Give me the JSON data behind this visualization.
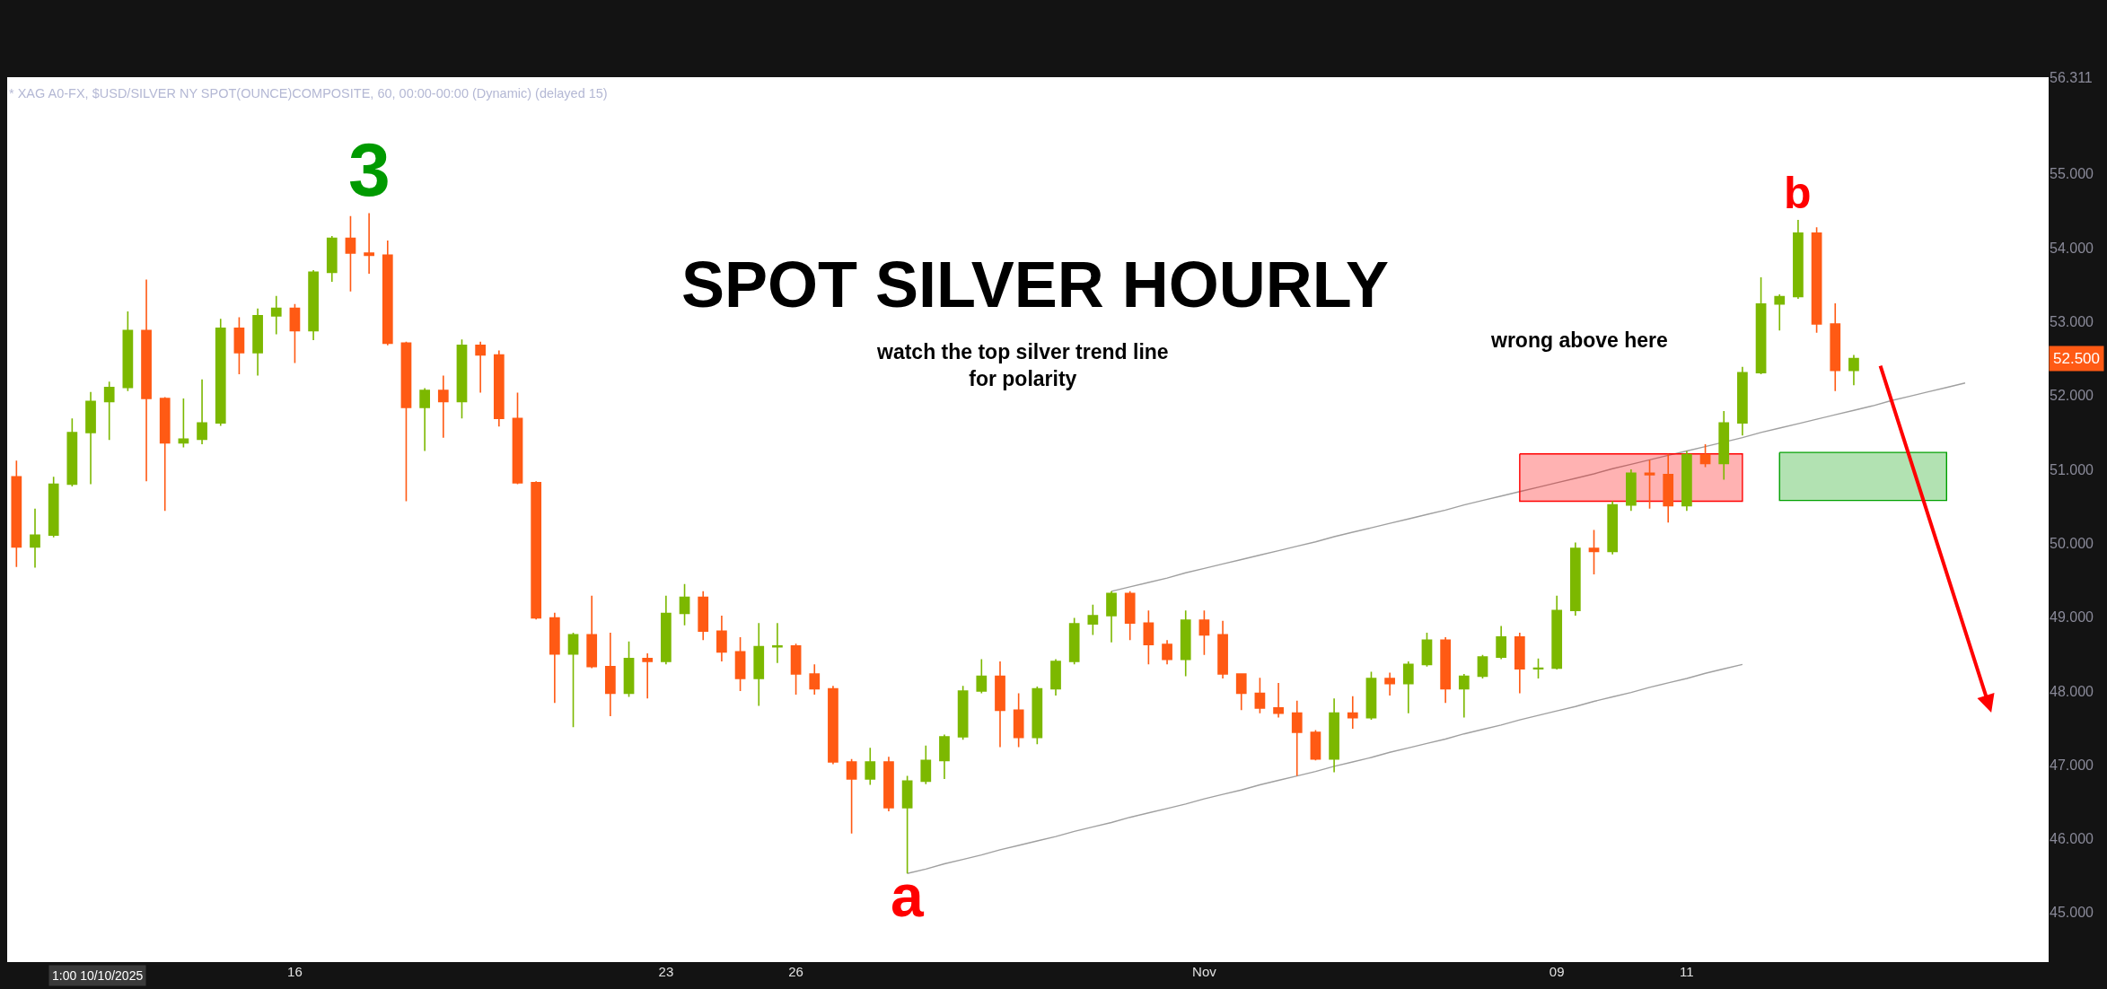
{
  "chart_data": {
    "type": "candlestick",
    "title": "SPOT SILVER HOURLY",
    "subtitle": "* XAG A0-FX, $USD/SILVER NY SPOT(OUNCE)COMPOSITE, 60, 00:00-00:00 (Dynamic) (delayed 15)",
    "categories": [
      null,
      null,
      null,
      null,
      null,
      null,
      null,
      null,
      null,
      null,
      null,
      null,
      null,
      null,
      null,
      "16",
      null,
      null,
      null,
      null,
      null,
      null,
      null,
      null,
      null,
      null,
      null,
      null,
      null,
      null,
      null,
      null,
      null,
      null,
      null,
      "23",
      null,
      null,
      null,
      null,
      null,
      null,
      "26",
      null,
      null,
      null,
      null,
      null,
      null,
      null,
      null,
      null,
      null,
      null,
      null,
      null,
      null,
      null,
      null,
      null,
      null,
      null,
      null,
      null,
      "Nov",
      null,
      null,
      null,
      null,
      null,
      null,
      null,
      null,
      null,
      null,
      null,
      null,
      null,
      null,
      null,
      null,
      null,
      null,
      "09",
      null,
      null,
      null,
      null,
      null,
      null,
      "11",
      null,
      null,
      null,
      null,
      null,
      null,
      null,
      null,
      null,
      null,
      null,
      null,
      null,
      null,
      null,
      null,
      null,
      null,
      null
    ],
    "ohlc": [
      [
        50.9,
        51.12,
        49.68,
        49.95
      ],
      [
        49.95,
        50.47,
        49.67,
        50.11
      ],
      [
        50.11,
        50.9,
        50.08,
        50.8
      ],
      [
        50.8,
        51.69,
        50.77,
        51.5
      ],
      [
        51.5,
        52.05,
        50.8,
        51.92
      ],
      [
        51.92,
        52.19,
        51.4,
        52.11
      ],
      [
        52.11,
        53.14,
        52.06,
        52.88
      ],
      [
        52.88,
        53.57,
        50.84,
        51.96
      ],
      [
        51.96,
        51.98,
        50.44,
        51.36
      ],
      [
        51.36,
        51.96,
        51.3,
        51.41
      ],
      [
        51.41,
        52.22,
        51.34,
        51.63
      ],
      [
        51.63,
        53.04,
        51.59,
        52.91
      ],
      [
        52.91,
        53.06,
        52.29,
        52.58
      ],
      [
        52.58,
        53.18,
        52.27,
        53.08
      ],
      [
        53.08,
        53.35,
        52.83,
        53.18
      ],
      [
        53.18,
        53.24,
        52.44,
        52.88
      ],
      [
        52.88,
        53.7,
        52.75,
        53.67
      ],
      [
        53.67,
        54.16,
        53.54,
        54.13
      ],
      [
        54.13,
        54.43,
        53.41,
        53.93
      ],
      [
        53.93,
        54.47,
        53.65,
        53.9
      ],
      [
        53.9,
        54.1,
        52.68,
        52.71
      ],
      [
        52.71,
        52.73,
        50.57,
        51.84
      ],
      [
        51.84,
        52.1,
        51.25,
        52.07
      ],
      [
        52.07,
        52.27,
        51.43,
        51.92
      ],
      [
        51.92,
        52.76,
        51.69,
        52.68
      ],
      [
        52.68,
        52.73,
        52.04,
        52.55
      ],
      [
        52.55,
        52.61,
        51.58,
        51.69
      ],
      [
        51.69,
        52.04,
        50.8,
        50.82
      ],
      [
        50.82,
        50.84,
        48.97,
        48.99
      ],
      [
        48.99,
        49.06,
        47.84,
        48.5
      ],
      [
        48.5,
        48.79,
        47.51,
        48.76
      ],
      [
        48.76,
        49.29,
        48.31,
        48.33
      ],
      [
        48.33,
        48.79,
        47.66,
        47.97
      ],
      [
        47.97,
        48.67,
        47.92,
        48.44
      ],
      [
        48.44,
        48.51,
        47.9,
        48.4
      ],
      [
        48.4,
        49.29,
        48.36,
        49.05
      ],
      [
        49.05,
        49.45,
        48.89,
        49.27
      ],
      [
        49.27,
        49.35,
        48.69,
        48.81
      ],
      [
        48.81,
        49.02,
        48.4,
        48.53
      ],
      [
        48.53,
        48.73,
        48.0,
        48.17
      ],
      [
        48.17,
        48.92,
        47.8,
        48.6
      ],
      [
        48.6,
        48.92,
        48.38,
        48.61
      ],
      [
        48.61,
        48.64,
        47.95,
        48.23
      ],
      [
        48.23,
        48.36,
        47.95,
        48.03
      ],
      [
        48.03,
        48.07,
        47.01,
        47.04
      ],
      [
        47.04,
        47.08,
        46.07,
        46.81
      ],
      [
        46.81,
        47.23,
        46.73,
        47.04
      ],
      [
        47.04,
        47.11,
        46.37,
        46.42
      ],
      [
        46.42,
        46.85,
        45.53,
        46.78
      ],
      [
        46.78,
        47.26,
        46.74,
        47.06
      ],
      [
        47.06,
        47.41,
        46.81,
        47.38
      ],
      [
        47.38,
        48.07,
        47.34,
        48.0
      ],
      [
        48.0,
        48.43,
        47.97,
        48.2
      ],
      [
        48.2,
        48.4,
        47.24,
        47.74
      ],
      [
        47.74,
        47.97,
        47.24,
        47.37
      ],
      [
        47.37,
        48.06,
        47.28,
        48.03
      ],
      [
        48.03,
        48.43,
        47.94,
        48.4
      ],
      [
        48.4,
        48.99,
        48.36,
        48.91
      ],
      [
        48.91,
        49.17,
        48.76,
        49.02
      ],
      [
        49.02,
        49.35,
        48.66,
        49.32
      ],
      [
        49.32,
        49.35,
        48.69,
        48.92
      ],
      [
        48.92,
        49.09,
        48.36,
        48.63
      ],
      [
        48.63,
        48.69,
        48.36,
        48.43
      ],
      [
        48.43,
        49.09,
        48.2,
        48.96
      ],
      [
        48.96,
        49.09,
        48.49,
        48.76
      ],
      [
        48.76,
        48.95,
        48.17,
        48.23
      ],
      [
        48.23,
        48.24,
        47.74,
        47.97
      ],
      [
        47.97,
        48.18,
        47.7,
        47.77
      ],
      [
        47.77,
        48.11,
        47.64,
        47.7
      ],
      [
        47.7,
        47.87,
        46.85,
        47.44
      ],
      [
        47.44,
        47.47,
        47.06,
        47.08
      ],
      [
        47.08,
        47.9,
        46.9,
        47.7
      ],
      [
        47.7,
        47.93,
        47.49,
        47.64
      ],
      [
        47.64,
        48.26,
        47.61,
        48.17
      ],
      [
        48.17,
        48.25,
        47.94,
        48.1
      ],
      [
        48.1,
        48.4,
        47.7,
        48.36
      ],
      [
        48.36,
        48.79,
        48.33,
        48.69
      ],
      [
        48.69,
        48.73,
        47.84,
        48.03
      ],
      [
        48.03,
        48.23,
        47.64,
        48.2
      ],
      [
        48.2,
        48.49,
        48.17,
        48.46
      ],
      [
        48.46,
        48.88,
        48.43,
        48.73
      ],
      [
        48.73,
        48.79,
        47.97,
        48.3
      ],
      [
        48.3,
        48.44,
        48.17,
        48.31
      ],
      [
        48.31,
        49.29,
        48.29,
        49.09
      ],
      [
        49.09,
        50.01,
        49.02,
        49.93
      ],
      [
        49.93,
        50.18,
        49.58,
        49.89
      ],
      [
        49.89,
        50.57,
        49.85,
        50.52
      ],
      [
        50.52,
        51.0,
        50.44,
        50.95
      ],
      [
        50.95,
        51.13,
        50.47,
        50.93
      ],
      [
        50.93,
        51.21,
        50.28,
        50.51
      ],
      [
        50.51,
        51.25,
        50.44,
        51.2
      ],
      [
        51.2,
        51.34,
        51.03,
        51.08
      ],
      [
        51.08,
        51.79,
        50.86,
        51.63
      ],
      [
        51.63,
        52.39,
        51.46,
        52.31
      ],
      [
        52.31,
        53.6,
        52.29,
        53.24
      ],
      [
        53.24,
        53.37,
        52.88,
        53.34
      ],
      [
        53.34,
        54.38,
        53.31,
        54.2
      ],
      [
        54.2,
        54.28,
        52.85,
        52.97
      ],
      [
        52.97,
        53.25,
        52.06,
        52.34
      ],
      [
        52.34,
        52.55,
        52.14,
        52.5
      ],
      null,
      null,
      null,
      null,
      null,
      null,
      null,
      null,
      null,
      null
    ],
    "colors": [
      "#ff5a14",
      "#7cb800",
      "#7cb800",
      "#7cb800",
      "#7cb800",
      "#7cb800",
      "#7cb800",
      "#ff5a14",
      "#ff5a14",
      "#7cb800",
      "#7cb800",
      "#7cb800",
      "#ff5a14",
      "#7cb800",
      "#7cb800",
      "#ff5a14",
      "#7cb800",
      "#7cb800",
      "#ff5a14",
      "#ff5a14",
      "#ff5a14",
      "#ff5a14",
      "#7cb800",
      "#ff5a14",
      "#7cb800",
      "#ff5a14",
      "#ff5a14",
      "#ff5a14",
      "#ff5a14",
      "#ff5a14",
      "#7cb800",
      "#ff5a14",
      "#ff5a14",
      "#7cb800",
      "#ff5a14",
      "#7cb800",
      "#7cb800",
      "#ff5a14",
      "#ff5a14",
      "#ff5a14",
      "#7cb800",
      "#7cb800",
      "#ff5a14",
      "#ff5a14",
      "#ff5a14",
      "#ff5a14",
      "#7cb800",
      "#ff5a14",
      "#7cb800",
      "#7cb800",
      "#7cb800",
      "#7cb800",
      "#7cb800",
      "#ff5a14",
      "#ff5a14",
      "#7cb800",
      "#7cb800",
      "#7cb800",
      "#7cb800",
      "#7cb800",
      "#ff5a14",
      "#ff5a14",
      "#ff5a14",
      "#7cb800",
      "#ff5a14",
      "#ff5a14",
      "#ff5a14",
      "#ff5a14",
      "#ff5a14",
      "#ff5a14",
      "#ff5a14",
      "#7cb800",
      "#ff5a14",
      "#7cb800",
      "#ff5a14",
      "#7cb800",
      "#7cb800",
      "#ff5a14",
      "#7cb800",
      "#7cb800",
      "#7cb800",
      "#ff5a14",
      "#7cb800",
      "#7cb800",
      "#7cb800",
      "#ff5a14",
      "#7cb800",
      "#7cb800",
      "#ff5a14",
      "#ff5a14",
      "#7cb800",
      "#ff5a14",
      "#7cb800",
      "#7cb800",
      "#7cb800",
      "#7cb800",
      "#7cb800",
      "#ff5a14",
      "#ff5a14",
      "#7cb800",
      null,
      null,
      null,
      null,
      null,
      null,
      null,
      null,
      null,
      null
    ],
    "ylim": [
      44.33,
      56.311
    ],
    "yticks": [
      {
        "value": 45,
        "label": "45.000"
      },
      {
        "value": 46,
        "label": "46.000"
      },
      {
        "value": 47,
        "label": "47.000"
      },
      {
        "value": 48,
        "label": "48.000"
      },
      {
        "value": 49,
        "label": "49.000"
      },
      {
        "value": 50,
        "label": "50.000"
      },
      {
        "value": 51,
        "label": "51.000"
      },
      {
        "value": 52,
        "label": "52.000"
      },
      {
        "value": 53,
        "label": "53.000"
      },
      {
        "value": 54,
        "label": "54.000"
      },
      {
        "value": 55,
        "label": "55.000"
      },
      {
        "value": 56.311,
        "label": "56.311"
      }
    ],
    "series": [
      {
        "type": "line",
        "color": "#a0a0a0",
        "values": [
          null,
          null,
          null,
          null,
          null,
          null,
          null,
          null,
          null,
          null,
          null,
          null,
          null,
          null,
          null,
          null,
          null,
          null,
          null,
          null,
          null,
          null,
          null,
          null,
          null,
          null,
          null,
          null,
          null,
          null,
          null,
          null,
          null,
          null,
          null,
          null,
          null,
          null,
          null,
          null,
          null,
          null,
          null,
          null,
          null,
          null,
          null,
          null,
          null,
          null,
          null,
          null,
          null,
          null,
          null,
          null,
          null,
          null,
          null,
          49.35,
          49.41,
          49.47,
          49.53,
          49.6,
          49.66,
          49.72,
          49.78,
          49.84,
          49.9,
          49.96,
          50.02,
          50.09,
          50.15,
          50.21,
          50.27,
          50.33,
          50.39,
          50.45,
          50.52,
          50.58,
          50.64,
          50.7,
          50.76,
          50.82,
          50.88,
          50.94,
          51.01,
          51.07,
          51.13,
          51.19,
          51.25,
          51.31,
          51.37,
          51.43,
          51.5,
          51.56,
          51.62,
          51.68,
          51.74,
          51.8,
          51.86,
          51.93,
          51.99,
          52.05,
          52.11,
          52.17,
          null,
          null,
          null,
          null
        ]
      },
      {
        "type": "line",
        "color": "#a0a0a0",
        "values": [
          null,
          null,
          null,
          null,
          null,
          null,
          null,
          null,
          null,
          null,
          null,
          null,
          null,
          null,
          null,
          null,
          null,
          null,
          null,
          null,
          null,
          null,
          null,
          null,
          null,
          null,
          null,
          null,
          null,
          null,
          null,
          null,
          null,
          null,
          null,
          null,
          null,
          null,
          null,
          null,
          null,
          null,
          null,
          null,
          null,
          null,
          null,
          null,
          45.53,
          45.59,
          45.66,
          45.72,
          45.78,
          45.85,
          45.91,
          45.97,
          46.03,
          46.1,
          46.16,
          46.22,
          46.29,
          46.35,
          46.41,
          46.47,
          46.54,
          46.6,
          46.66,
          46.73,
          46.79,
          46.85,
          46.91,
          46.98,
          47.04,
          47.1,
          47.17,
          47.23,
          47.29,
          47.35,
          47.42,
          47.48,
          47.54,
          47.61,
          47.67,
          47.73,
          47.79,
          47.86,
          47.92,
          47.98,
          48.05,
          48.11,
          48.17,
          48.24,
          48.3,
          48.36,
          null,
          null,
          null,
          null,
          null,
          null,
          null,
          null,
          null,
          null,
          null,
          null,
          null,
          null,
          null,
          null
        ]
      },
      {
        "type": "area",
        "color": "#ff0000",
        "values": [
          null,
          null,
          null,
          null,
          null,
          null,
          null,
          null,
          null,
          null,
          null,
          null,
          null,
          null,
          null,
          null,
          null,
          null,
          null,
          null,
          null,
          null,
          null,
          null,
          null,
          null,
          null,
          null,
          null,
          null,
          null,
          null,
          null,
          null,
          null,
          null,
          null,
          null,
          null,
          null,
          null,
          null,
          null,
          null,
          null,
          null,
          null,
          null,
          null,
          null,
          null,
          null,
          null,
          null,
          null,
          null,
          null,
          null,
          null,
          null,
          null,
          null,
          null,
          null,
          null,
          null,
          null,
          null,
          null,
          null,
          null,
          null,
          null,
          null,
          null,
          null,
          null,
          null,
          null,
          null,
          null,
          null,
          null,
          null,
          null,
          null,
          null,
          null,
          null,
          null,
          null,
          null,
          null,
          null,
          null,
          null,
          null,
          null,
          null,
          null,
          null,
          null,
          null,
          null,
          null,
          null,
          null,
          null,
          null,
          null
        ],
        "lower": [
          null,
          null,
          null,
          null,
          null,
          null,
          null,
          null,
          null,
          null,
          null,
          null,
          null,
          null,
          null,
          null,
          null,
          null,
          null,
          null,
          null,
          null,
          null,
          null,
          null,
          null,
          null,
          null,
          null,
          null,
          null,
          null,
          null,
          null,
          null,
          null,
          null,
          null,
          null,
          null,
          null,
          null,
          null,
          null,
          null,
          null,
          null,
          null,
          null,
          null,
          null,
          null,
          null,
          null,
          null,
          null,
          null,
          null,
          null,
          null,
          null,
          null,
          null,
          null,
          null,
          null,
          null,
          null,
          null,
          null,
          null,
          null,
          null,
          null,
          null,
          null,
          null,
          null,
          null,
          null,
          null,
          50.57,
          50.57,
          50.57,
          50.57,
          50.57,
          50.57,
          50.57,
          50.57,
          50.57,
          50.57,
          50.57,
          50.57,
          50.57,
          null,
          null,
          null,
          null,
          null,
          null,
          null,
          null,
          null,
          null,
          null,
          null,
          null,
          null,
          null,
          null
        ],
        "upper": [
          null,
          null,
          null,
          null,
          null,
          null,
          null,
          null,
          null,
          null,
          null,
          null,
          null,
          null,
          null,
          null,
          null,
          null,
          null,
          null,
          null,
          null,
          null,
          null,
          null,
          null,
          null,
          null,
          null,
          null,
          null,
          null,
          null,
          null,
          null,
          null,
          null,
          null,
          null,
          null,
          null,
          null,
          null,
          null,
          null,
          null,
          null,
          null,
          null,
          null,
          null,
          null,
          null,
          null,
          null,
          null,
          null,
          null,
          null,
          null,
          null,
          null,
          null,
          null,
          null,
          null,
          null,
          null,
          null,
          null,
          null,
          null,
          null,
          null,
          null,
          null,
          null,
          null,
          null,
          null,
          null,
          51.21,
          51.21,
          51.21,
          51.21,
          51.21,
          51.21,
          51.21,
          51.21,
          51.21,
          51.21,
          51.21,
          51.21,
          51.21,
          null,
          null,
          null,
          null,
          null,
          null,
          null,
          null,
          null,
          null,
          null,
          null,
          null,
          null,
          null,
          null
        ]
      },
      {
        "type": "area",
        "color": "#00a000",
        "values": [
          null,
          null,
          null,
          null,
          null,
          null,
          null,
          null,
          null,
          null,
          null,
          null,
          null,
          null,
          null,
          null,
          null,
          null,
          null,
          null,
          null,
          null,
          null,
          null,
          null,
          null,
          null,
          null,
          null,
          null,
          null,
          null,
          null,
          null,
          null,
          null,
          null,
          null,
          null,
          null,
          null,
          null,
          null,
          null,
          null,
          null,
          null,
          null,
          null,
          null,
          null,
          null,
          null,
          null,
          null,
          null,
          null,
          null,
          null,
          null,
          null,
          null,
          null,
          null,
          null,
          null,
          null,
          null,
          null,
          null,
          null,
          null,
          null,
          null,
          null,
          null,
          null,
          null,
          null,
          null,
          null,
          null,
          null,
          null,
          null,
          null,
          null,
          null,
          null,
          null,
          null,
          null,
          null,
          null,
          null,
          null,
          null,
          null,
          null,
          null,
          null,
          null,
          null,
          null,
          null,
          null,
          null,
          null,
          null,
          null
        ],
        "lower": [
          null,
          null,
          null,
          null,
          null,
          null,
          null,
          null,
          null,
          null,
          null,
          null,
          null,
          null,
          null,
          null,
          null,
          null,
          null,
          null,
          null,
          null,
          null,
          null,
          null,
          null,
          null,
          null,
          null,
          null,
          null,
          null,
          null,
          null,
          null,
          null,
          null,
          null,
          null,
          null,
          null,
          null,
          null,
          null,
          null,
          null,
          null,
          null,
          null,
          null,
          null,
          null,
          null,
          null,
          null,
          null,
          null,
          null,
          null,
          null,
          null,
          null,
          null,
          null,
          null,
          null,
          null,
          null,
          null,
          null,
          null,
          null,
          null,
          null,
          null,
          null,
          null,
          null,
          null,
          null,
          null,
          null,
          null,
          null,
          null,
          null,
          null,
          null,
          null,
          null,
          null,
          null,
          null,
          null,
          null,
          50.58,
          50.58,
          50.58,
          50.58,
          50.58,
          50.58,
          50.58,
          50.58,
          50.58,
          50.58,
          null,
          null,
          null,
          null,
          null
        ],
        "upper": [
          null,
          null,
          null,
          null,
          null,
          null,
          null,
          null,
          null,
          null,
          null,
          null,
          null,
          null,
          null,
          null,
          null,
          null,
          null,
          null,
          null,
          null,
          null,
          null,
          null,
          null,
          null,
          null,
          null,
          null,
          null,
          null,
          null,
          null,
          null,
          null,
          null,
          null,
          null,
          null,
          null,
          null,
          null,
          null,
          null,
          null,
          null,
          null,
          null,
          null,
          null,
          null,
          null,
          null,
          null,
          null,
          null,
          null,
          null,
          null,
          null,
          null,
          null,
          null,
          null,
          null,
          null,
          null,
          null,
          null,
          null,
          null,
          null,
          null,
          null,
          null,
          null,
          null,
          null,
          null,
          null,
          null,
          null,
          null,
          null,
          null,
          null,
          null,
          null,
          null,
          null,
          null,
          null,
          null,
          null,
          51.23,
          51.23,
          51.23,
          51.23,
          51.23,
          51.23,
          51.23,
          51.23,
          51.23,
          51.23,
          null,
          null,
          null,
          null,
          null
        ]
      }
    ],
    "annotations": [
      {
        "text": "3",
        "y": 54.47
      },
      {
        "text": "a",
        "y": 45.53
      },
      {
        "text": "b",
        "y": 54.38
      },
      "watch the top silver trend line\nfor polarity",
      "wrong above here",
      "52.500",
      "1:00 10/10/2025"
    ]
  }
}
